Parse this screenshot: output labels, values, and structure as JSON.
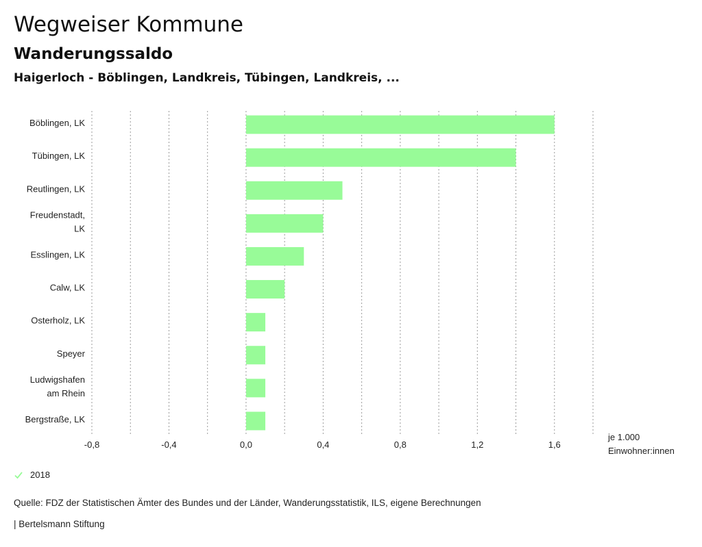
{
  "header": {
    "title": "Wegweiser Kommune",
    "subtitle": "Wanderungssaldo",
    "region": "Haigerloch - Böblingen, Landkreis, Tübingen, Landkreis, ..."
  },
  "chart_data": {
    "type": "bar",
    "orientation": "horizontal",
    "categories": [
      [
        "Böblingen, LK"
      ],
      [
        "Tübingen, LK"
      ],
      [
        "Reutlingen, LK"
      ],
      [
        "Freudenstadt,",
        "LK"
      ],
      [
        "Esslingen, LK"
      ],
      [
        "Calw, LK"
      ],
      [
        "Osterholz, LK"
      ],
      [
        "Speyer"
      ],
      [
        "Ludwigshafen",
        "am Rhein"
      ],
      [
        "Bergstraße, LK"
      ]
    ],
    "series": [
      {
        "name": "2018",
        "values": [
          1.6,
          1.4,
          0.5,
          0.4,
          0.3,
          0.2,
          0.1,
          0.1,
          0.1,
          0.1
        ]
      }
    ],
    "xlim": [
      -0.8,
      1.8
    ],
    "xticks": [
      -0.8,
      -0.4,
      0.0,
      0.4,
      0.8,
      1.2,
      1.6
    ],
    "xtick_labels": [
      "-0,8",
      "-0,4",
      "0,0",
      "0,4",
      "0,8",
      "1,2",
      "1,6"
    ],
    "gridlines": [
      -0.8,
      -0.6,
      -0.4,
      -0.2,
      0.0,
      0.2,
      0.4,
      0.6,
      0.8,
      1.0,
      1.2,
      1.4,
      1.6,
      1.8
    ],
    "unit_label": [
      "je 1.000",
      "Einwohner:innen"
    ],
    "bar_color": "#98fb98",
    "grid": true,
    "legend_position": "bottom-left"
  },
  "legend": {
    "label": "2018",
    "color": "#98fb98",
    "icon": "check-icon"
  },
  "footer": {
    "source": "Quelle: FDZ der Statistischen Ämter des Bundes und der Länder, Wanderungsstatistik, ILS, eigene Berechnungen",
    "credit": "| Bertelsmann Stiftung"
  }
}
